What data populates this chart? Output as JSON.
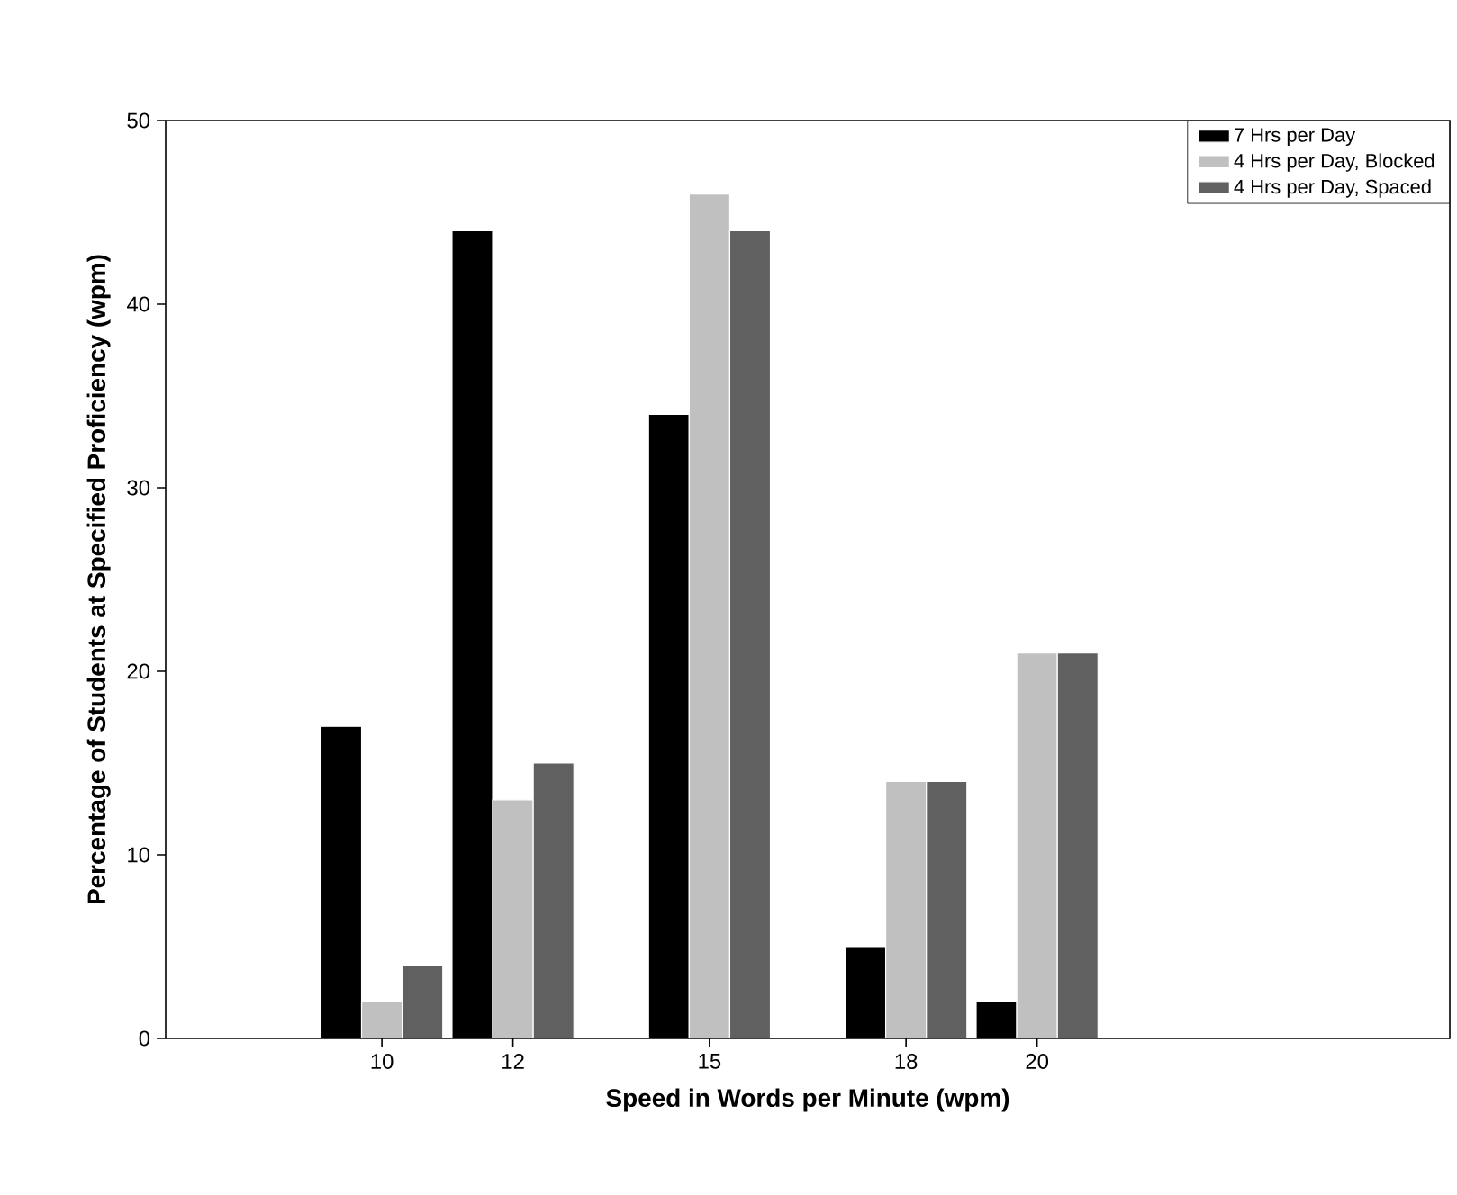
{
  "chart_data": {
    "type": "bar",
    "xlabel": "Speed in Words per Minute (wpm)",
    "ylabel": "Percentage of Students at Specified Proficiency (wpm)",
    "x": [
      10,
      12,
      15,
      18,
      20
    ],
    "series": [
      {
        "name": "7 Hrs per Day",
        "color": "#000000",
        "values": [
          17,
          44,
          34,
          5,
          2
        ]
      },
      {
        "name": "4 Hrs per Day, Blocked",
        "color": "#c0c0c0",
        "values": [
          2,
          13,
          46,
          14,
          21
        ]
      },
      {
        "name": "4 Hrs per Day, Spaced",
        "color": "#606060",
        "values": [
          4,
          15,
          44,
          14,
          21
        ]
      }
    ],
    "xlim": [
      6.7,
      26.3
    ],
    "xticks": [
      10,
      12,
      15,
      18,
      20
    ],
    "ylim": [
      0,
      50
    ],
    "yticks": [
      0,
      10,
      20,
      30,
      40,
      50
    ],
    "grid": false,
    "legend": "top right"
  }
}
